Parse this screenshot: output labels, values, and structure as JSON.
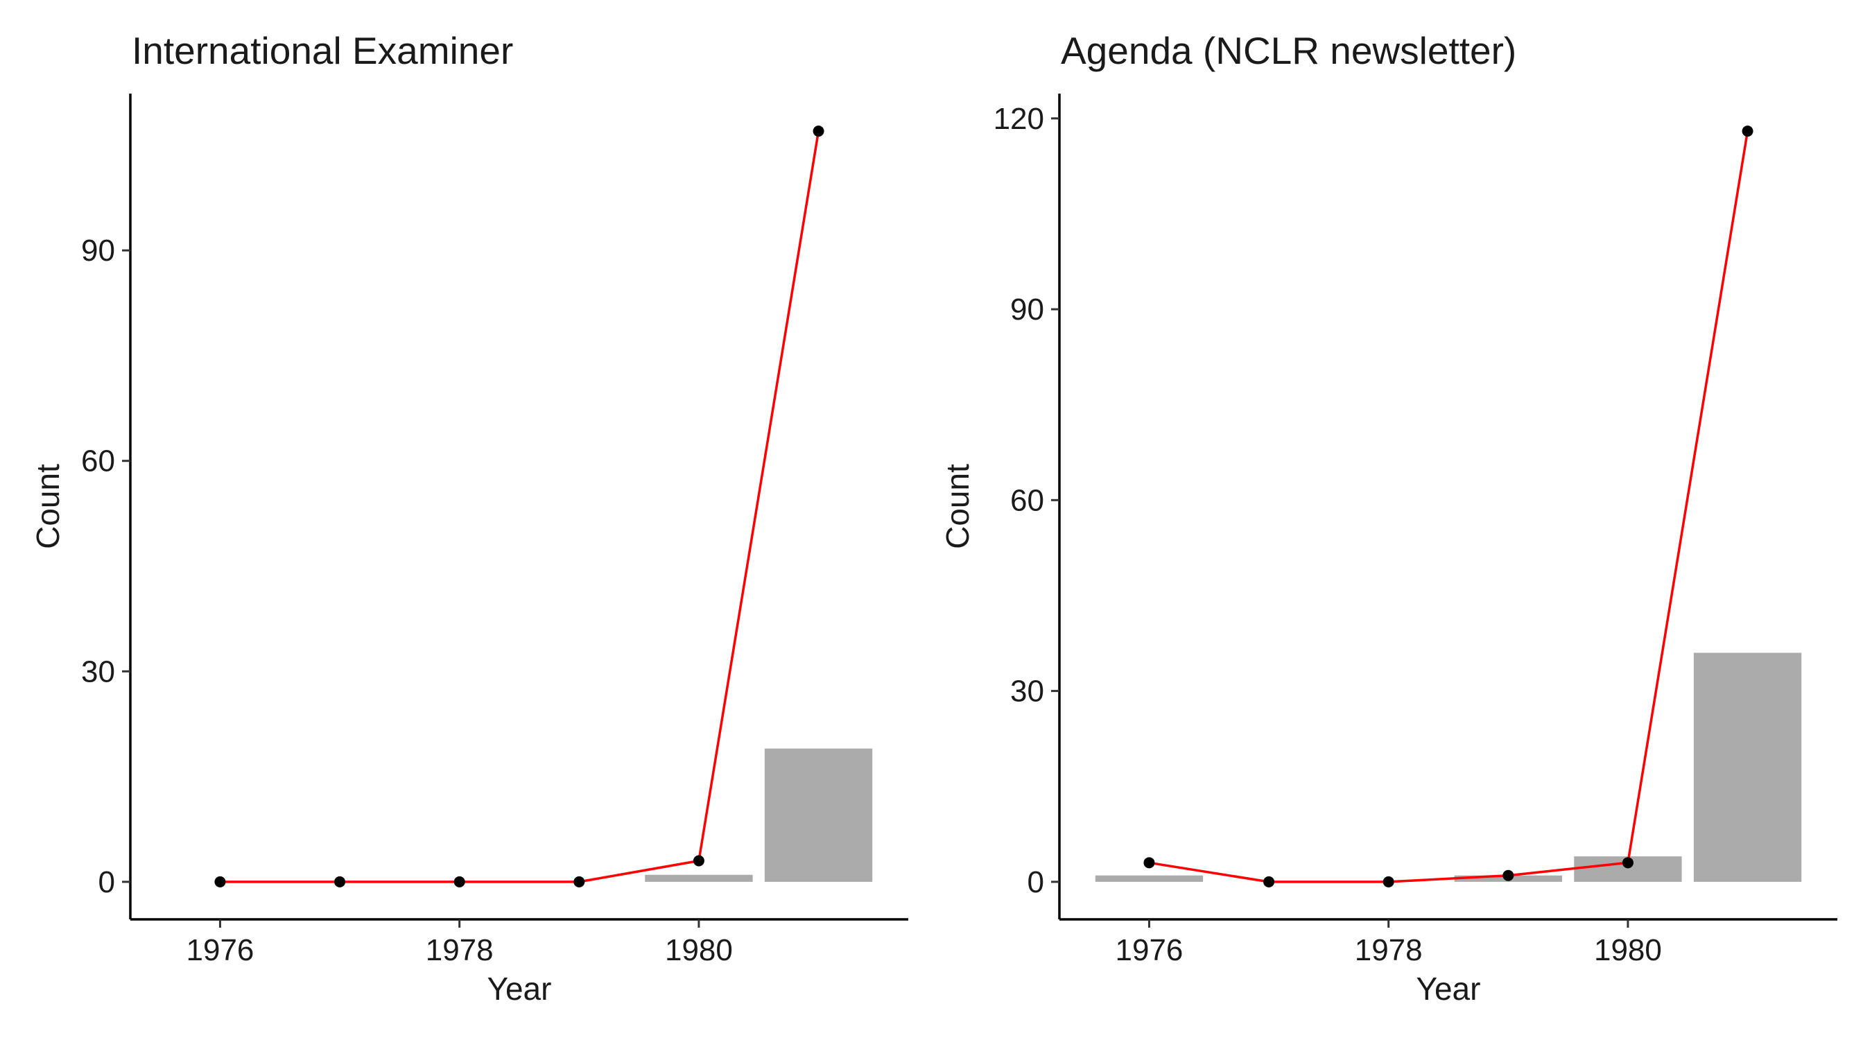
{
  "chart_data": [
    {
      "type": "bar+line",
      "title": "International Examiner",
      "xlabel": "Year",
      "ylabel": "Count",
      "xlim": [
        1975.25,
        1981.75
      ],
      "ylim": [
        -5.35,
        112.35
      ],
      "x_ticks": [
        1976,
        1978,
        1980
      ],
      "y_ticks": [
        0,
        30,
        60,
        90
      ],
      "grid": false,
      "bars": {
        "color": "#ababab",
        "x": [
          1980,
          1981
        ],
        "values": [
          1,
          19
        ]
      },
      "line": {
        "color": "#ff0000",
        "point_color": "#000000",
        "x": [
          1976,
          1977,
          1978,
          1979,
          1980,
          1981
        ],
        "values": [
          0,
          0,
          0,
          0,
          3,
          107
        ]
      }
    },
    {
      "type": "bar+line",
      "title": "Agenda (NCLR newsletter)",
      "xlabel": "Year",
      "ylabel": "Count",
      "xlim": [
        1975.25,
        1981.75
      ],
      "ylim": [
        -5.9,
        123.9
      ],
      "x_ticks": [
        1976,
        1978,
        1980
      ],
      "y_ticks": [
        0,
        30,
        60,
        90,
        120
      ],
      "grid": false,
      "bars": {
        "color": "#ababab",
        "x": [
          1976,
          1979,
          1980,
          1981
        ],
        "values": [
          1,
          1,
          4,
          36
        ]
      },
      "line": {
        "color": "#ff0000",
        "point_color": "#000000",
        "x": [
          1976,
          1977,
          1978,
          1979,
          1980,
          1981
        ],
        "values": [
          3,
          0,
          0,
          1,
          3,
          118
        ]
      }
    }
  ]
}
